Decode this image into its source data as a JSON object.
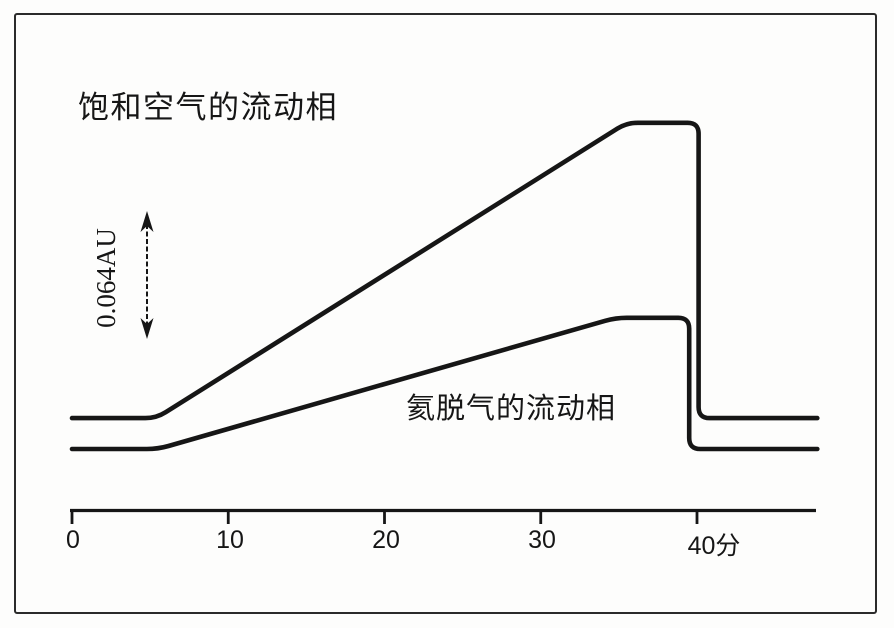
{
  "figure": {
    "ink_color": "#161616",
    "background_color": "#fdfdfc"
  },
  "chart_data": {
    "type": "line",
    "title": "",
    "xlabel": "分",
    "ylabel": "",
    "x_range_minutes": [
      0,
      47.7
    ],
    "x_ticks": [
      0,
      10,
      20,
      30,
      40
    ],
    "x_tick_labels": [
      "0",
      "10",
      "20",
      "30",
      "40分"
    ],
    "grid": false,
    "legend_position": "on-curve-annotations",
    "y_scale_bar": {
      "label": "0.064AU",
      "value_au": 0.064
    },
    "series": [
      {
        "name": "饱和空气的流动相",
        "description": "air-saturated mobile phase baseline",
        "points_min_au": [
          [
            0,
            0.0165
          ],
          [
            5.4,
            0.0165
          ],
          [
            35.5,
            0.174
          ],
          [
            40.1,
            0.174
          ],
          [
            40.1,
            0.0165
          ],
          [
            47.7,
            0.0165
          ]
        ]
      },
      {
        "name": "氦脱气的流动相",
        "description": "helium-degassed mobile phase baseline",
        "points_min_au": [
          [
            0,
            0.0
          ],
          [
            5.5,
            0.0
          ],
          [
            34.8,
            0.07
          ],
          [
            39.5,
            0.07
          ],
          [
            39.5,
            0.0
          ],
          [
            47.7,
            0.0
          ]
        ]
      }
    ],
    "line_color": "#161616"
  }
}
